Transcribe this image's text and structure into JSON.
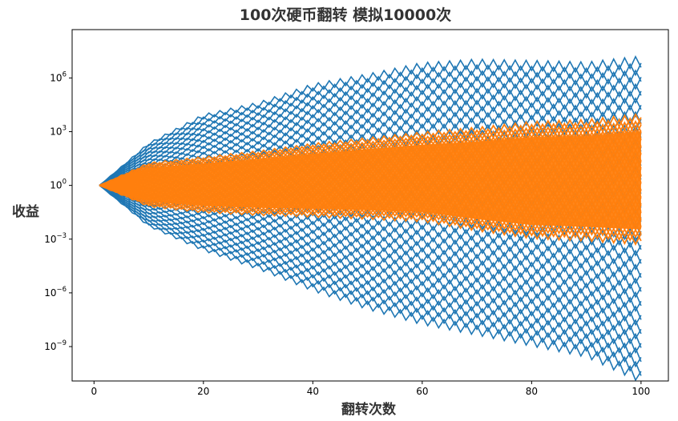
{
  "chart_data": {
    "type": "line",
    "title": "100次硬币翻转 模拟10000次",
    "xlabel": "翻转次数",
    "ylabel": "收益",
    "y_scale": "log",
    "xlim": [
      -4,
      105
    ],
    "ylim": [
      1.2e-11,
      500000000.0
    ],
    "x_ticks": [
      {
        "value": 0,
        "label": "0"
      },
      {
        "value": 20,
        "label": "20"
      },
      {
        "value": 40,
        "label": "40"
      },
      {
        "value": 60,
        "label": "60"
      },
      {
        "value": 80,
        "label": "80"
      },
      {
        "value": 100,
        "label": "100"
      }
    ],
    "y_ticks": [
      {
        "value": 1000000.0,
        "base": "10",
        "exp": "6"
      },
      {
        "value": 1000.0,
        "base": "10",
        "exp": "3"
      },
      {
        "value": 1,
        "base": "10",
        "exp": "0"
      },
      {
        "value": 0.001,
        "base": "10",
        "exp": "−3"
      },
      {
        "value": 1e-06,
        "base": "10",
        "exp": "−6"
      },
      {
        "value": 1e-09,
        "base": "10",
        "exp": "−9"
      }
    ],
    "grid": false,
    "legend": "none",
    "colors": {
      "all_paths": "#1f77b4",
      "central_band": "#ff7f0e"
    },
    "series": [
      {
        "color": "#1f77b4",
        "x": [
          1,
          10,
          20,
          30,
          40,
          50,
          60,
          70,
          80,
          90,
          100
        ],
        "max_path": [
          1,
          200,
          7000,
          30000,
          300000,
          1000000,
          4000000,
          6000000,
          5000000,
          4000000,
          8000000
        ],
        "min_path": [
          1,
          0.006,
          0.0003,
          3e-05,
          2e-06,
          2e-07,
          3e-08,
          8e-09,
          2e-09,
          5e-10,
          2e-11
        ]
      },
      {
        "color": "#ff7f0e",
        "x": [
          1,
          10,
          20,
          30,
          40,
          50,
          60,
          70,
          80,
          90,
          100
        ],
        "upper": [
          1,
          15,
          30,
          60,
          150,
          300,
          600,
          1000,
          2000,
          2500,
          5000
        ],
        "lower": [
          1,
          0.08,
          0.04,
          0.03,
          0.025,
          0.02,
          0.015,
          0.005,
          0.002,
          0.0015,
          0.001
        ]
      }
    ]
  }
}
